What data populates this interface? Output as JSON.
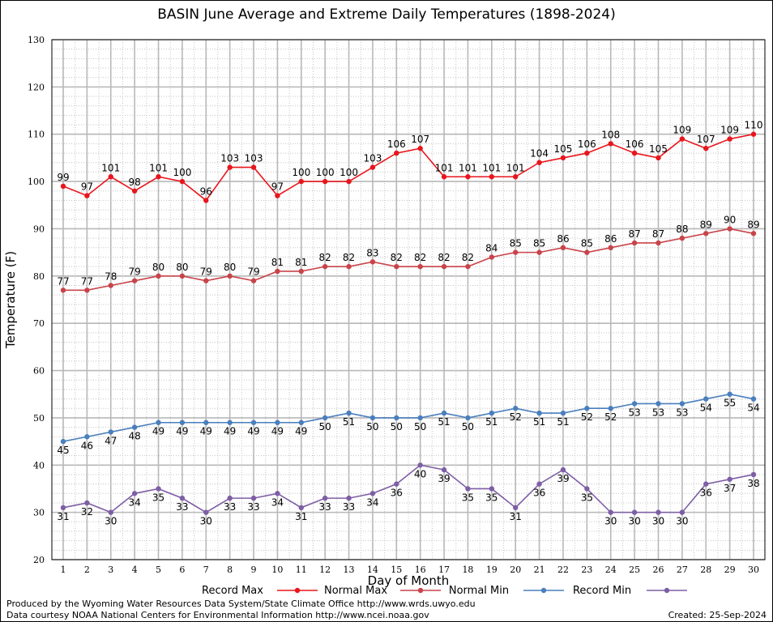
{
  "title": "BASIN June Average and Extreme Daily Temperatures (1898-2024)",
  "footer": {
    "line1": "Produced by the Wyoming Water Resources Data System/State Climate Office http://www.wrds.uwyo.edu",
    "line2": "Data courtesy NOAA National Centers for Environmental Information http://www.ncei.noaa.gov",
    "created": "Created:  25-Sep-2024"
  },
  "chart_data": {
    "type": "line",
    "title": "BASIN June Average and Extreme Daily Temperatures (1898-2024)",
    "xlabel": "Day of Month",
    "ylabel": "Temperature (F)",
    "x": [
      1,
      2,
      3,
      4,
      5,
      6,
      7,
      8,
      9,
      10,
      11,
      12,
      13,
      14,
      15,
      16,
      17,
      18,
      19,
      20,
      21,
      22,
      23,
      24,
      25,
      26,
      27,
      28,
      29,
      30
    ],
    "xlim": [
      1,
      30
    ],
    "ylim": [
      20,
      130
    ],
    "yticks": [
      20,
      30,
      40,
      50,
      60,
      70,
      80,
      90,
      100,
      110,
      120,
      130
    ],
    "grid": true,
    "legend_placement": "bottom",
    "series": [
      {
        "name": "Record Max",
        "color": "#e8161d",
        "values": [
          99,
          97,
          101,
          98,
          101,
          100,
          96,
          103,
          103,
          97,
          100,
          100,
          100,
          103,
          106,
          107,
          101,
          101,
          101,
          101,
          104,
          105,
          106,
          108,
          106,
          105,
          109,
          107,
          109,
          110
        ]
      },
      {
        "name": "Normal Max",
        "color": "#c8444a",
        "values": [
          77,
          77,
          78,
          79,
          80,
          80,
          79,
          80,
          79,
          81,
          81,
          82,
          82,
          83,
          82,
          82,
          82,
          82,
          84,
          85,
          85,
          86,
          85,
          86,
          87,
          87,
          88,
          89,
          90,
          89
        ]
      },
      {
        "name": "Normal Min",
        "color": "#4a7fbd",
        "values": [
          45,
          46,
          47,
          48,
          49,
          49,
          49,
          49,
          49,
          49,
          49,
          50,
          51,
          50,
          50,
          50,
          51,
          50,
          51,
          52,
          51,
          51,
          52,
          52,
          53,
          53,
          53,
          54,
          55,
          54
        ]
      },
      {
        "name": "Record Min",
        "color": "#7e5ea5",
        "values": [
          31,
          32,
          30,
          34,
          35,
          33,
          30,
          33,
          33,
          34,
          31,
          33,
          33,
          34,
          36,
          40,
          39,
          35,
          35,
          31,
          36,
          39,
          35,
          30,
          30,
          30,
          30,
          36,
          37,
          38
        ]
      }
    ]
  }
}
